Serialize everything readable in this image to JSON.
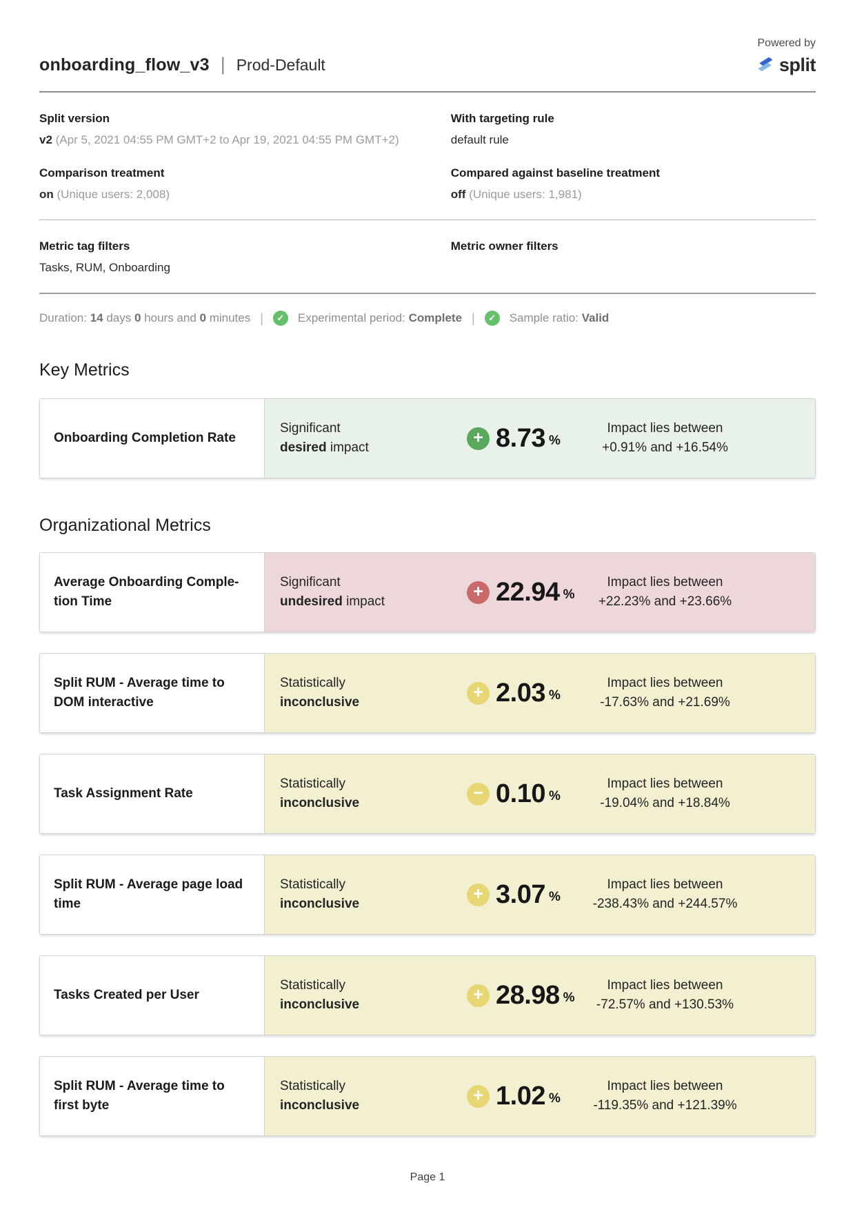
{
  "header": {
    "powered_by": "Powered by",
    "brand": "split",
    "title": "onboarding_flow_v3",
    "separator": "|",
    "environment": "Prod-Default"
  },
  "meta": {
    "fields": [
      {
        "label": "Split version",
        "value": [
          {
            "t": "v2",
            "b": true
          },
          {
            "t": " (Apr 5, 2021 04:55 PM GMT+2 to Apr 19, 2021 04:55 PM GMT+2)",
            "m": true
          }
        ]
      },
      {
        "label": "With targeting rule",
        "value": [
          {
            "t": "default rule"
          }
        ]
      },
      {
        "label": "Comparison treatment",
        "value": [
          {
            "t": "on",
            "b": true
          },
          {
            "t": " (Unique users: 2,008)",
            "m": true
          }
        ]
      },
      {
        "label": "Compared against baseline treatment",
        "value": [
          {
            "t": "off",
            "b": true
          },
          {
            "t": " (Unique users: 1,981)",
            "m": true
          }
        ]
      },
      {
        "label": "Metric tag filters",
        "value": [
          {
            "t": "Tasks, RUM, Onboarding"
          }
        ]
      },
      {
        "label": "Metric owner filters",
        "value": []
      }
    ]
  },
  "status_bar": {
    "separator": "|",
    "check_glyph": "✓",
    "duration": [
      {
        "t": "Duration: "
      },
      {
        "t": "14",
        "b": true
      },
      {
        "t": " days "
      },
      {
        "t": "0",
        "b": true
      },
      {
        "t": " hours and "
      },
      {
        "t": "0",
        "b": true
      },
      {
        "t": " minutes"
      }
    ],
    "experimental_period": [
      {
        "t": "Experimental period: "
      },
      {
        "t": "Complete",
        "b": true
      }
    ],
    "sample_ratio": [
      {
        "t": "Sample ratio: "
      },
      {
        "t": "Valid",
        "b": true
      }
    ]
  },
  "key_metrics": {
    "heading": "Key Metrics",
    "cards": [
      {
        "name": "Onboarding Completion Rate",
        "status_line1": "Significant",
        "status_line2": [
          {
            "t": "desired",
            "b": true
          },
          {
            "t": " impact"
          }
        ],
        "icon": "plus-circle",
        "icon_glyph": "+",
        "value": "8.73",
        "unit": "%",
        "impact_line1": "Impact lies between",
        "impact_line2": "+0.91% and +16.54%"
      }
    ]
  },
  "organizational_metrics": {
    "heading": "Organizational Metrics",
    "cards": [
      {
        "name": "Average Onboarding Comple­tion Time",
        "status_line1": "Significant",
        "status_line2": [
          {
            "t": "undesired",
            "b": true
          },
          {
            "t": " impact"
          }
        ],
        "icon": "plus-circle",
        "icon_glyph": "+",
        "value": "22.94",
        "unit": "%",
        "impact_line1": "Impact lies between",
        "impact_line2": "+22.23% and +23.66%"
      },
      {
        "name": "Split RUM - Average time to DOM interactive",
        "status_line1": "Statistically",
        "status_line2": [
          {
            "t": "inconclusive",
            "b": true
          }
        ],
        "icon": "plus-circle",
        "icon_glyph": "+",
        "value": "2.03",
        "unit": "%",
        "impact_line1": "Impact lies between",
        "impact_line2": "-17.63% and +21.69%"
      },
      {
        "name": "Task Assignment Rate",
        "status_line1": "Statistically",
        "status_line2": [
          {
            "t": "inconclusive",
            "b": true
          }
        ],
        "icon": "minus-circle",
        "icon_glyph": "−",
        "value": "0.10",
        "unit": "%",
        "impact_line1": "Impact lies between",
        "impact_line2": "-19.04% and +18.84%"
      },
      {
        "name": "Split RUM - Average page load time",
        "status_line1": "Statistically",
        "status_line2": [
          {
            "t": "inconclusive",
            "b": true
          }
        ],
        "icon": "plus-circle",
        "icon_glyph": "+",
        "value": "3.07",
        "unit": "%",
        "impact_line1": "Impact lies between",
        "impact_line2": "-238.43% and +244.57%"
      },
      {
        "name": "Tasks Created per User",
        "status_line1": "Statistically",
        "status_line2": [
          {
            "t": "inconclusive",
            "b": true
          }
        ],
        "icon": "plus-circle",
        "icon_glyph": "+",
        "value": "28.98",
        "unit": "%",
        "impact_line1": "Impact lies between",
        "impact_line2": "-72.57% and +130.53%"
      },
      {
        "name": "Split RUM - Average time to first byte",
        "status_line1": "Statistically",
        "status_line2": [
          {
            "t": "inconclusive",
            "b": true
          }
        ],
        "icon": "plus-circle",
        "icon_glyph": "+",
        "value": "1.02",
        "unit": "%",
        "impact_line1": "Impact lies between",
        "impact_line2": "-119.35% and +121.39%"
      }
    ]
  },
  "footer": {
    "page_label": "Page 1"
  },
  "colors": {
    "brand_dark_blue": "#3566cf",
    "brand_light_blue": "#85b9ec",
    "check_green": "#66bf6b",
    "desired_bg": "#e9f2e9",
    "desired_icon": "#5aa75e",
    "undesired_bg": "#eed7da",
    "undesired_icon": "#c96a6a",
    "inconclusive_bg": "#f3efd1",
    "inconclusive_icon": "#e7d674"
  }
}
